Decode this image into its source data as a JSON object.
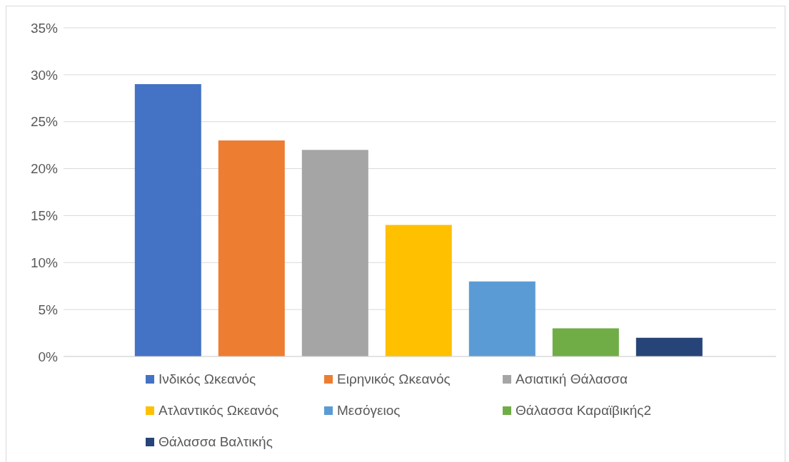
{
  "chart_data": {
    "type": "bar",
    "categories": [
      null
    ],
    "series": [
      {
        "name": "Ινδικός Ωκεανός",
        "color": "#4472c4",
        "values": [
          29
        ]
      },
      {
        "name": "Ειρηνικός Ωκεανός",
        "color": "#ed7d31",
        "values": [
          23
        ]
      },
      {
        "name": "Ασιατική Θάλασσα",
        "color": "#a5a5a5",
        "values": [
          22
        ]
      },
      {
        "name": "Ατλαντικός Ωκεανός",
        "color": "#ffc000",
        "values": [
          14
        ]
      },
      {
        "name": "Μεσόγειος",
        "color": "#5b9bd5",
        "values": [
          8
        ]
      },
      {
        "name": "Θάλασσα Καραϊβικής2",
        "color": "#70ad47",
        "values": [
          3
        ]
      },
      {
        "name": "Θάλασσα Βαλτικής",
        "color": "#264478",
        "values": [
          2
        ]
      }
    ],
    "ylim": [
      0,
      35
    ],
    "yticks": [
      {
        "value": 0,
        "label": "0%"
      },
      {
        "value": 5,
        "label": "5%"
      },
      {
        "value": 10,
        "label": "10%"
      },
      {
        "value": 15,
        "label": "15%"
      },
      {
        "value": 20,
        "label": "20%"
      },
      {
        "value": 25,
        "label": "25%"
      },
      {
        "value": 30,
        "label": "30%"
      },
      {
        "value": 35,
        "label": "35%"
      }
    ],
    "grid": "y",
    "legend": "bottom"
  }
}
